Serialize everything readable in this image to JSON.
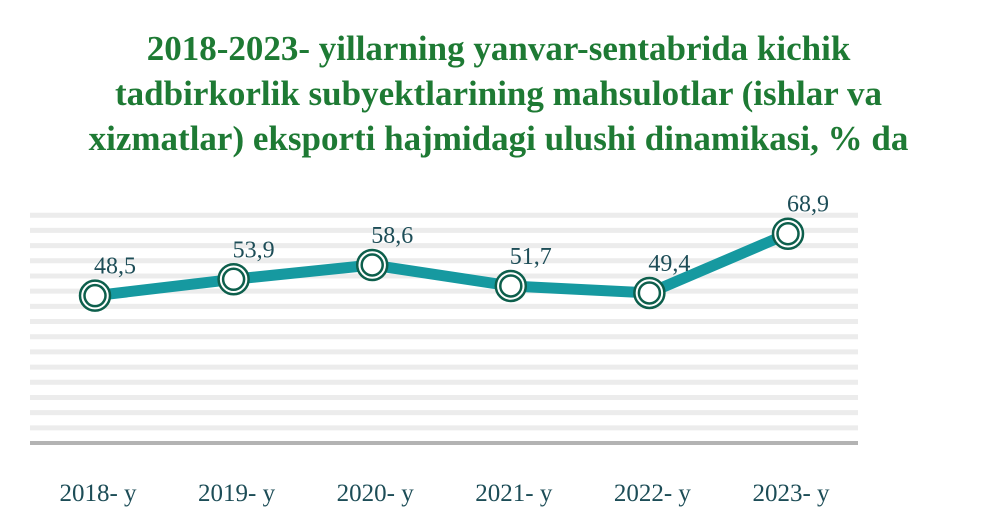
{
  "chart_data": {
    "type": "line",
    "title": [
      "2018-2023- yillarning yanvar-sentabrida kichik",
      "tadbirkorlik subyektlarining mahsulotlar  (ishlar va",
      "xizmatlar) eksporti hajmidagi ulushi dinamikasi, % da"
    ],
    "categories": [
      "2018- y",
      "2019- y",
      "2020- y",
      "2021- y",
      "2022- y",
      "2023- y"
    ],
    "series": [
      {
        "values": [
          48.5,
          53.9,
          58.6,
          51.7,
          49.4,
          68.9
        ],
        "data_labels": [
          "48,5",
          "53,9",
          "58,6",
          "51,7",
          "49,4",
          "68,9"
        ]
      }
    ],
    "ylim": [
      0,
      80
    ],
    "grid": true,
    "legend": "none",
    "colors": {
      "title": "#1e7a34",
      "line": "#1699a0",
      "marker_stroke": "#0d5f4c",
      "labels": "#1d4d57",
      "grid": "#ececec",
      "axis": "#b3b3b3"
    }
  }
}
